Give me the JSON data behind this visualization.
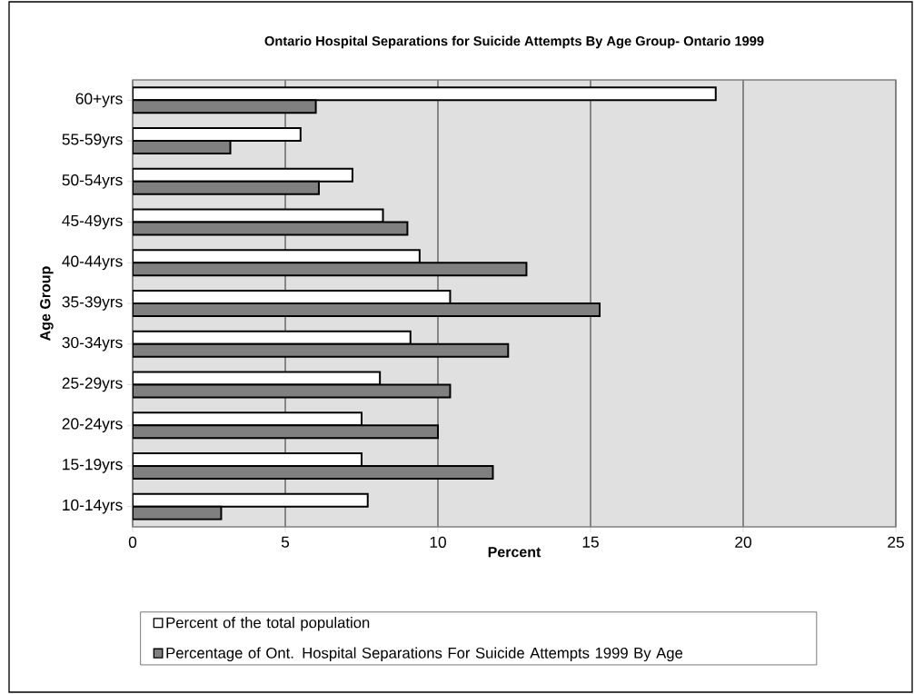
{
  "chart_data": {
    "type": "bar",
    "orientation": "horizontal",
    "title": "Ontario Hospital Separations for Suicide Attempts By Age Group- Ontario 1999",
    "xlabel": "Percent",
    "ylabel": "Age Group",
    "categories": [
      "60+yrs",
      "55-59yrs",
      "50-54yrs",
      "45-49yrs",
      "40-44yrs",
      "35-39yrs",
      "30-34yrs",
      "25-29yrs",
      "20-24yrs",
      "15-19yrs",
      "10-14yrs"
    ],
    "series": [
      {
        "name": "Percent of the total population",
        "color": "#ffffff",
        "values": [
          19.1,
          5.5,
          7.2,
          8.2,
          9.4,
          10.4,
          9.1,
          8.1,
          7.5,
          7.5,
          7.7
        ]
      },
      {
        "name": "Percentage of Ont. Hospital Separations For Suicide Attempts 1999 By Age",
        "color": "#808080",
        "values": [
          6.0,
          3.2,
          6.1,
          9.0,
          12.9,
          15.3,
          12.3,
          10.4,
          10.0,
          11.8,
          2.9
        ]
      }
    ],
    "xlim": [
      0,
      25
    ],
    "xticks": [
      0,
      5,
      10,
      15,
      20,
      25
    ],
    "grid": "x",
    "legend": "bottom"
  }
}
